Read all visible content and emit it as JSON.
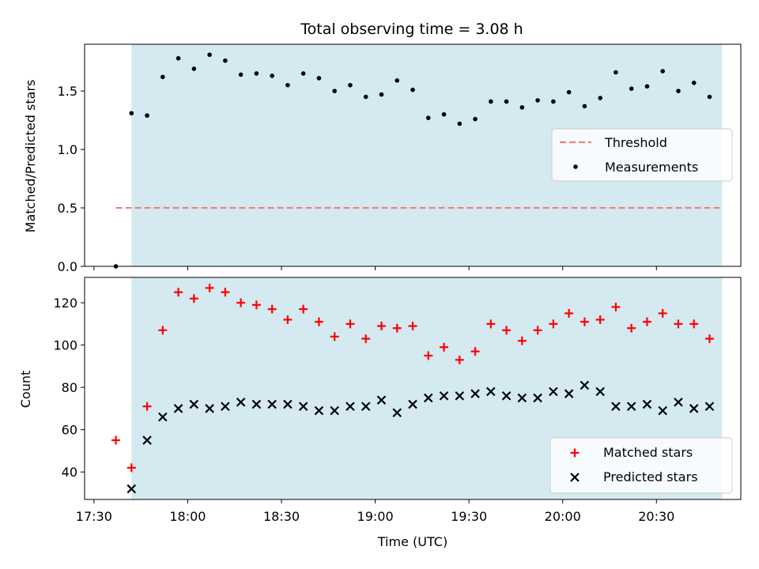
{
  "chart_data": [
    {
      "type": "scatter",
      "title": "Total observing time = 3.08 h",
      "ylabel": "Matched/Predicted stars",
      "xlabel": "",
      "xlim": [
        "17:27",
        "20:57"
      ],
      "ylim": [
        0,
        1.9
      ],
      "yticks": [
        "0.0",
        "0.5",
        "1.0",
        "1.5"
      ],
      "shaded_region": {
        "from": "17:42",
        "to": "20:51",
        "color": "#d4eaf0"
      },
      "threshold": {
        "name": "Threshold",
        "value": 0.5,
        "from": "17:37",
        "to": "20:51",
        "color": "#f08080"
      },
      "legend": {
        "placement": "center-right",
        "entries": [
          "Threshold",
          "Measurements"
        ]
      },
      "series": [
        {
          "name": "Measurements",
          "marker": "dot",
          "color": "#000000",
          "x": [
            "17:37",
            "17:42",
            "17:47",
            "17:52",
            "17:57",
            "18:02",
            "18:07",
            "18:12",
            "18:17",
            "18:22",
            "18:27",
            "18:32",
            "18:37",
            "18:42",
            "18:47",
            "18:52",
            "18:57",
            "19:02",
            "19:07",
            "19:12",
            "19:17",
            "19:22",
            "19:27",
            "19:32",
            "19:37",
            "19:42",
            "19:47",
            "19:52",
            "19:57",
            "20:02",
            "20:07",
            "20:12",
            "20:17",
            "20:22",
            "20:27",
            "20:32",
            "20:37",
            "20:42",
            "20:47"
          ],
          "y": [
            0.0,
            1.31,
            1.29,
            1.62,
            1.78,
            1.69,
            1.81,
            1.76,
            1.64,
            1.65,
            1.63,
            1.55,
            1.65,
            1.61,
            1.5,
            1.55,
            1.45,
            1.47,
            1.59,
            1.51,
            1.27,
            1.3,
            1.22,
            1.26,
            1.41,
            1.41,
            1.36,
            1.42,
            1.41,
            1.49,
            1.37,
            1.44,
            1.66,
            1.52,
            1.54,
            1.67,
            1.5,
            1.57,
            1.45
          ]
        }
      ]
    },
    {
      "type": "scatter",
      "title": "",
      "ylabel": "Count",
      "xlabel": "Time (UTC)",
      "xlim": [
        "17:27",
        "20:57"
      ],
      "ylim": [
        27,
        132
      ],
      "xticks": [
        "17:30",
        "18:00",
        "18:30",
        "19:00",
        "19:30",
        "20:00",
        "20:30"
      ],
      "yticks": [
        "40",
        "60",
        "80",
        "100",
        "120"
      ],
      "shaded_region": {
        "from": "17:42",
        "to": "20:51",
        "color": "#d4eaf0"
      },
      "legend": {
        "placement": "bottom-right",
        "entries": [
          "Matched stars",
          "Predicted stars"
        ]
      },
      "series": [
        {
          "name": "Matched stars",
          "marker": "plus",
          "color": "#ff0000",
          "x": [
            "17:37",
            "17:42",
            "17:47",
            "17:52",
            "17:57",
            "18:02",
            "18:07",
            "18:12",
            "18:17",
            "18:22",
            "18:27",
            "18:32",
            "18:37",
            "18:42",
            "18:47",
            "18:52",
            "18:57",
            "19:02",
            "19:07",
            "19:12",
            "19:17",
            "19:22",
            "19:27",
            "19:32",
            "19:37",
            "19:42",
            "19:47",
            "19:52",
            "19:57",
            "20:02",
            "20:07",
            "20:12",
            "20:17",
            "20:22",
            "20:27",
            "20:32",
            "20:37",
            "20:42",
            "20:47"
          ],
          "y": [
            55,
            42,
            71,
            107,
            125,
            122,
            127,
            125,
            120,
            119,
            117,
            112,
            117,
            111,
            104,
            110,
            103,
            109,
            108,
            109,
            95,
            99,
            93,
            97,
            110,
            107,
            102,
            107,
            110,
            115,
            111,
            112,
            118,
            108,
            111,
            115,
            110,
            110,
            103
          ]
        },
        {
          "name": "Predicted stars",
          "marker": "x",
          "color": "#000000",
          "x": [
            "17:42",
            "17:47",
            "17:52",
            "17:57",
            "18:02",
            "18:07",
            "18:12",
            "18:17",
            "18:22",
            "18:27",
            "18:32",
            "18:37",
            "18:42",
            "18:47",
            "18:52",
            "18:57",
            "19:02",
            "19:07",
            "19:12",
            "19:17",
            "19:22",
            "19:27",
            "19:32",
            "19:37",
            "19:42",
            "19:47",
            "19:52",
            "19:57",
            "20:02",
            "20:07",
            "20:12",
            "20:17",
            "20:22",
            "20:27",
            "20:32",
            "20:37",
            "20:42",
            "20:47"
          ],
          "y": [
            32,
            55,
            66,
            70,
            72,
            70,
            71,
            73,
            72,
            72,
            72,
            71,
            69,
            69,
            71,
            71,
            74,
            68,
            72,
            75,
            76,
            76,
            77,
            78,
            76,
            75,
            75,
            78,
            77,
            81,
            78,
            71,
            71,
            72,
            69,
            73,
            70,
            71
          ]
        }
      ]
    }
  ]
}
